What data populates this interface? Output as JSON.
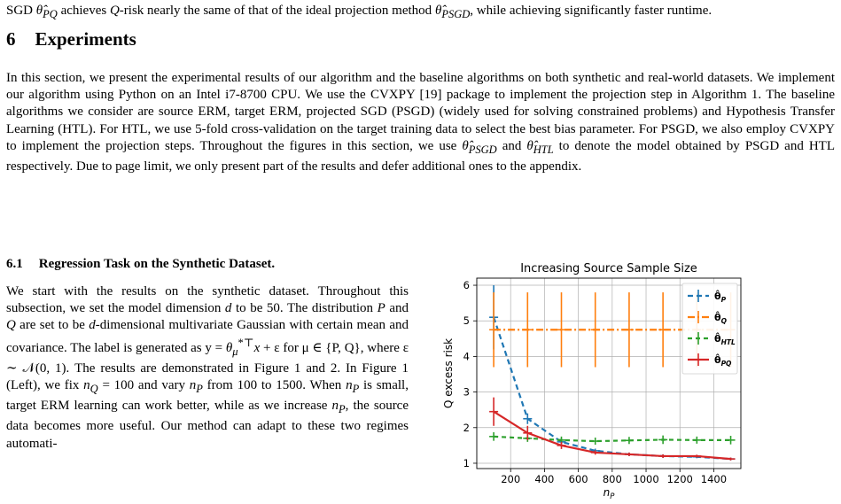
{
  "top_line": "SGD θ̂PQ achieves Q-risk nearly the same of that of the ideal projection method θ̂PSGD, while achieving significantly faster runtime.",
  "section": {
    "number": "6",
    "title": "Experiments"
  },
  "intro_paragraph": "In this section, we present the experimental results of our algorithm and the baseline algorithms on both synthetic and real-world datasets. We implement our algorithm using Python on an Intel i7-8700 CPU. We use the CVXPY [19] package to implement the projection step in Algorithm 1. The baseline algorithms we consider are source ERM, target ERM, projected SGD (PSGD) (widely used for solving constrained problems) and Hypothesis Transfer Learning (HTL). For HTL, we use 5-fold cross-validation on the target training data to select the best bias parameter. For PSGD, we also employ CVXPY to implement the projection steps. Throughout the figures in this section, we use θ̂PSGD and θ̂HTL to denote the model obtained by PSGD and HTL respectively. Due to page limit, we only present part of the results and defer additional ones to the appendix.",
  "subsection": {
    "number": "6.1",
    "title": "Regression Task on the Synthetic Dataset."
  },
  "subsection_paragraph": "We start with the results on the synthetic dataset. Throughout this subsection, we set the model dimension d to be 50. The distribution P and Q are set to be d-dimensional multivariate Gaussian with certain mean and covariance. The label is generated as y = θμ*ᵀx + ε for μ ∈ {P, Q}, where ε ∼ 𝒩(0, 1). The results are demonstrated in Figure 1 and 2. In Figure 1 (Left), we fix nQ = 100 and vary nP from 100 to 1500. When nP is small, target ERM learning can work better, while as we increase nP, the source data becomes more useful. Our method can adapt to these two regimes automati-",
  "chart_data": {
    "type": "line",
    "title": "Increasing Source Sample Size",
    "xlabel": "nP",
    "ylabel": "Q excess risk",
    "xlim": [
      0,
      1560
    ],
    "ylim": [
      0.85,
      6.2
    ],
    "x_ticks": [
      200,
      400,
      600,
      800,
      1000,
      1200,
      1400
    ],
    "y_ticks": [
      1,
      2,
      3,
      4,
      5,
      6
    ],
    "grid": true,
    "legend_position": "top-right",
    "x": [
      100,
      300,
      500,
      700,
      900,
      1100,
      1300,
      1500
    ],
    "series": [
      {
        "name": "θ̂P",
        "color": "#1f77b4",
        "dash": "6,4",
        "values": [
          5.1,
          2.25,
          1.6,
          1.35,
          1.25,
          1.2,
          1.18,
          1.12
        ],
        "err": [
          0.9,
          0.15,
          0.1,
          0.06,
          0.05,
          0.05,
          0.04,
          0.04
        ]
      },
      {
        "name": "θ̂Q",
        "color": "#ff7f0e",
        "dash": "8,3,2,3",
        "values": [
          4.75,
          4.75,
          4.75,
          4.75,
          4.75,
          4.75,
          4.75,
          4.75
        ],
        "err": [
          1.05,
          1.05,
          1.05,
          1.05,
          1.05,
          1.05,
          1.05,
          1.05
        ]
      },
      {
        "name": "θ̂HTL",
        "color": "#2ca02c",
        "dash": "5,4",
        "values": [
          1.75,
          1.7,
          1.65,
          1.62,
          1.64,
          1.66,
          1.65,
          1.65
        ],
        "err": [
          0.12,
          0.1,
          0.1,
          0.1,
          0.1,
          0.12,
          0.1,
          0.12
        ]
      },
      {
        "name": "θ̂PQ",
        "color": "#d62728",
        "dash": "",
        "values": [
          2.45,
          1.85,
          1.5,
          1.3,
          1.25,
          1.2,
          1.2,
          1.12
        ],
        "err": [
          0.4,
          0.2,
          0.1,
          0.06,
          0.05,
          0.05,
          0.04,
          0.04
        ]
      }
    ]
  }
}
